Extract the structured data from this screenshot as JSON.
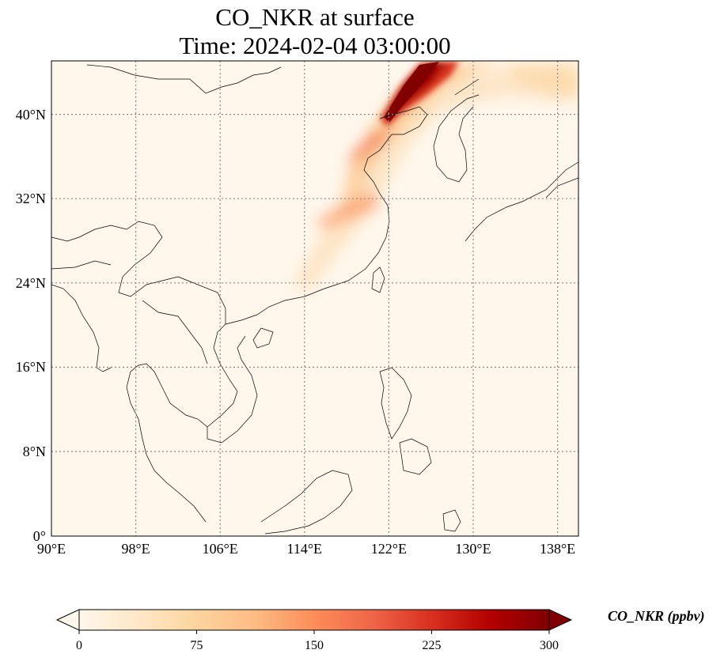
{
  "title": {
    "line1": "CO_NKR at surface",
    "line2": "Time: 2024-02-04 03:00:00"
  },
  "map": {
    "lon_ticks": [
      "90°E",
      "98°E",
      "106°E",
      "114°E",
      "122°E",
      "130°E",
      "138°E"
    ],
    "lat_ticks": [
      "0°",
      "8°N",
      "16°N",
      "24°N",
      "32°N",
      "40°N"
    ],
    "extent": {
      "lon_min": 90,
      "lon_max": 140,
      "lat_min": 0,
      "lat_max": 45
    },
    "gridlines": true
  },
  "colorbar": {
    "label": "CO_NKR (ppbv)",
    "ticks": [
      "0",
      "75",
      "150",
      "225",
      "300"
    ],
    "range": [
      0,
      300
    ],
    "extend": "both",
    "colormap": "OrRd",
    "colors": [
      "#fff7ec",
      "#fee8c8",
      "#fdd49e",
      "#fdbb84",
      "#fc8d59",
      "#ef6548",
      "#d7301f",
      "#b30000",
      "#7f0000"
    ]
  }
}
